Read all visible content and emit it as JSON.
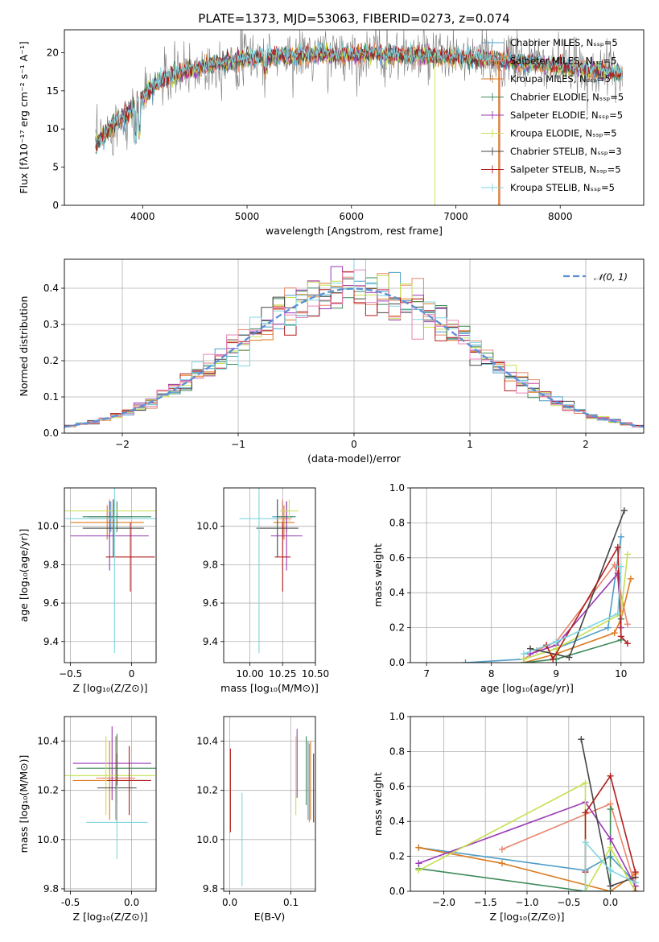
{
  "figure": {
    "title": "PLATE=1373, MJD=53063, FIBERID=0273, z=0.074"
  },
  "colors": {
    "Chabrier MILES": "#4f9ec6",
    "Salpeter MILES": "#e8866b",
    "Kroupa MILES": "#dd7a1f",
    "Chabrier ELODIE": "#3f8a5c",
    "Salpeter ELODIE": "#9b38b5",
    "Kroupa ELODIE": "#c6e152",
    "Chabrier STELIB": "#444444",
    "Salpeter STELIB": "#b21d1d",
    "Kroupa STELIB": "#7fd6e0",
    "observed": "#7a7a7a",
    "normal_curve": "#5a8fd6",
    "pink": "#e884b6"
  },
  "chart_data": [
    {
      "id": "spectrum",
      "type": "line",
      "title": "PLATE=1373, MJD=53063, FIBERID=0273, z=0.074",
      "xlabel": "wavelength [Angstrom, rest frame]",
      "ylabel": "Flux [fλ10⁻¹⁷ erg cm⁻² s⁻¹ A⁻¹]",
      "xlim": [
        3250,
        8800
      ],
      "ylim": [
        0,
        23
      ],
      "xticks": [
        4000,
        5000,
        6000,
        7000,
        8000
      ],
      "yticks": [
        0,
        5,
        10,
        15,
        20
      ],
      "grid": false,
      "legend_position": "top-right",
      "legend": [
        "Chabrier MILES, N_SSP=5",
        "Salpeter MILES, N_SSP=5",
        "Kroupa MILES, N_SSP=5",
        "Chabrier ELODIE, N_SSP=5",
        "Salpeter ELODIE, N_SSP=5",
        "Kroupa ELODIE, N_SSP=5",
        "Chabrier STELIB, N_SSP=3",
        "Salpeter STELIB, N_SSP=5",
        "Kroupa STELIB, N_SSP=5"
      ],
      "continuum": {
        "x": [
          3550,
          3650,
          3800,
          3900,
          4000,
          4100,
          4200,
          4400,
          4600,
          4800,
          5000,
          5200,
          5400,
          5600,
          5800,
          6000,
          6200,
          6400,
          6600,
          6800,
          7000,
          7200,
          7400,
          7600,
          7800,
          8000,
          8200,
          8400,
          8600
        ],
        "y": [
          8.0,
          9.5,
          11.5,
          12.5,
          14.0,
          15.5,
          16.5,
          17.5,
          18.3,
          18.8,
          19.3,
          19.5,
          19.6,
          19.7,
          19.8,
          19.8,
          19.8,
          19.7,
          19.6,
          19.5,
          19.4,
          19.2,
          19.0,
          18.8,
          18.5,
          18.2,
          17.9,
          17.6,
          17.3
        ]
      }
    },
    {
      "id": "residuals",
      "type": "line",
      "xlabel": "(data-model)/error",
      "ylabel": "Normed distribution",
      "xlim": [
        -2.5,
        2.5
      ],
      "ylim": [
        0,
        0.48
      ],
      "xticks": [
        -2,
        -1,
        0,
        1,
        2
      ],
      "yticks": [
        0.0,
        0.1,
        0.2,
        0.3,
        0.4
      ],
      "grid": true,
      "legend_position": "top-right",
      "legend": [
        "𝒩(0, 1)"
      ],
      "bin_width": 0.1,
      "curve": {
        "mean": 0,
        "sigma": 1
      }
    },
    {
      "id": "age-vs-Z",
      "type": "scatter",
      "xlabel": "Z [log₁₀(Z/Z⊙)]",
      "ylabel": "age  [log₁₀(age/yr)]",
      "xlim": [
        -0.55,
        0.2
      ],
      "ylim": [
        9.29,
        10.2
      ],
      "xticks": [
        -0.5,
        0.0
      ],
      "yticks": [
        9.4,
        9.6,
        9.8,
        10.0
      ],
      "grid": true,
      "points": [
        {
          "s": "Chabrier MILES",
          "x": -0.17,
          "xerr": 0.18,
          "y": 10.05,
          "yerr": 0.08
        },
        {
          "s": "Salpeter MILES",
          "x": -0.18,
          "xerr": 0.17,
          "y": 10.04,
          "yerr": 0.1
        },
        {
          "s": "Kroupa MILES",
          "x": -0.2,
          "xerr": 0.3,
          "y": 10.02,
          "yerr": 0.09
        },
        {
          "s": "Chabrier ELODIE",
          "x": -0.12,
          "xerr": 0.28,
          "y": 10.05,
          "yerr": 0.08
        },
        {
          "s": "Salpeter ELODIE",
          "x": -0.18,
          "xerr": 0.32,
          "y": 9.95,
          "yerr": 0.18
        },
        {
          "s": "Kroupa ELODIE",
          "x": -0.15,
          "xerr": 0.45,
          "y": 10.08,
          "yerr": 0.06
        },
        {
          "s": "Chabrier STELIB",
          "x": -0.15,
          "xerr": 0.25,
          "y": 9.99,
          "yerr": 0.15
        },
        {
          "s": "Salpeter STELIB",
          "x": -0.01,
          "xerr": 0.2,
          "y": 9.84,
          "yerr": 0.18
        },
        {
          "s": "Kroupa STELIB",
          "x": -0.14,
          "xerr": 0.4,
          "y": 10.04,
          "yerr": 0.7
        }
      ]
    },
    {
      "id": "age-vs-mass",
      "type": "scatter",
      "xlabel": "mass [log₁₀(M/M⊙)]",
      "ylabel": "",
      "xlim": [
        9.8,
        10.5
      ],
      "ylim": [
        9.29,
        10.2
      ],
      "xticks": [
        10.0,
        10.25,
        10.5
      ],
      "yticks": [
        9.4,
        9.6,
        9.8,
        10.0
      ],
      "grid": true,
      "points": [
        {
          "s": "Chabrier MILES",
          "x": 10.25,
          "xerr": 0.08,
          "y": 10.05,
          "yerr": 0.08
        },
        {
          "s": "Salpeter MILES",
          "x": 10.25,
          "xerr": 0.07,
          "y": 10.04,
          "yerr": 0.1
        },
        {
          "s": "Kroupa MILES",
          "x": 10.26,
          "xerr": 0.08,
          "y": 10.02,
          "yerr": 0.09
        },
        {
          "s": "Chabrier ELODIE",
          "x": 10.28,
          "xerr": 0.07,
          "y": 10.05,
          "yerr": 0.08
        },
        {
          "s": "Salpeter ELODIE",
          "x": 10.28,
          "xerr": 0.12,
          "y": 9.95,
          "yerr": 0.18
        },
        {
          "s": "Kroupa ELODIE",
          "x": 10.3,
          "xerr": 0.07,
          "y": 10.08,
          "yerr": 0.06
        },
        {
          "s": "Chabrier STELIB",
          "x": 10.21,
          "xerr": 0.16,
          "y": 9.99,
          "yerr": 0.15
        },
        {
          "s": "Salpeter STELIB",
          "x": 10.25,
          "xerr": 0.06,
          "y": 9.84,
          "yerr": 0.18
        },
        {
          "s": "Kroupa STELIB",
          "x": 10.07,
          "xerr": 0.15,
          "y": 10.04,
          "yerr": 0.7
        }
      ]
    },
    {
      "id": "massweight-vs-age",
      "type": "line",
      "xlabel": "age  [log₁₀(age/yr)]",
      "ylabel": "mass weight",
      "xlim": [
        6.75,
        10.35
      ],
      "ylim": [
        0,
        1.0
      ],
      "xticks": [
        7,
        8,
        9,
        10
      ],
      "yticks": [
        0.0,
        0.2,
        0.4,
        0.6,
        0.8,
        1.0
      ],
      "grid": true,
      "series": [
        {
          "name": "Chabrier MILES",
          "x": [
            7.6,
            8.5,
            9.0,
            9.8,
            10.0
          ],
          "y": [
            0.0,
            0.02,
            0.08,
            0.2,
            0.72
          ]
        },
        {
          "name": "Salpeter MILES",
          "x": [
            8.5,
            8.7,
            9.0,
            9.9,
            10.1
          ],
          "y": [
            0.02,
            0.07,
            0.12,
            0.56,
            0.22
          ]
        },
        {
          "name": "Kroupa MILES",
          "x": [
            8.5,
            9.0,
            9.9,
            10.0,
            10.15
          ],
          "y": [
            0.0,
            0.05,
            0.17,
            0.25,
            0.48
          ]
        },
        {
          "name": "Chabrier ELODIE",
          "x": [
            8.5,
            9.0,
            10.0,
            10.0
          ],
          "y": [
            0.0,
            0.02,
            0.13,
            0.25
          ]
        },
        {
          "name": "Salpeter ELODIE",
          "x": [
            8.6,
            9.0,
            9.95,
            10.0
          ],
          "y": [
            0.05,
            0.1,
            0.51,
            0.2
          ]
        },
        {
          "name": "Kroupa ELODIE",
          "x": [
            8.5,
            9.0,
            10.0,
            10.1
          ],
          "y": [
            0.02,
            0.08,
            0.28,
            0.62
          ]
        },
        {
          "name": "Chabrier STELIB",
          "x": [
            8.6,
            9.2,
            10.05
          ],
          "y": [
            0.08,
            0.03,
            0.87
          ]
        },
        {
          "name": "Salpeter STELIB",
          "x": [
            8.85,
            8.95,
            9.95,
            10.0,
            10.1
          ],
          "y": [
            0.1,
            0.02,
            0.66,
            0.15,
            0.11
          ]
        },
        {
          "name": "Kroupa STELIB",
          "x": [
            8.5,
            9.0,
            9.95,
            10.0
          ],
          "y": [
            0.05,
            0.12,
            0.28,
            0.55
          ]
        }
      ]
    },
    {
      "id": "mass-vs-Z",
      "type": "scatter",
      "xlabel": "Z [log₁₀(Z/Z⊙)]",
      "ylabel": "mass [log₁₀(M/M⊙)]",
      "xlim": [
        -0.55,
        0.2
      ],
      "ylim": [
        9.79,
        10.5
      ],
      "xticks": [
        -0.5,
        0.0
      ],
      "yticks": [
        9.8,
        10.0,
        10.2,
        10.4
      ],
      "grid": true,
      "points": [
        {
          "s": "Chabrier MILES",
          "x": -0.12,
          "xerr": 0.12,
          "y": 10.25,
          "yerr": 0.17
        },
        {
          "s": "Salpeter MILES",
          "x": -0.13,
          "xerr": 0.16,
          "y": 10.25,
          "yerr": 0.17
        },
        {
          "s": "Kroupa MILES",
          "x": -0.18,
          "xerr": 0.3,
          "y": 10.24,
          "yerr": 0.16
        },
        {
          "s": "Chabrier ELODIE",
          "x": -0.12,
          "xerr": 0.33,
          "y": 10.29,
          "yerr": 0.14
        },
        {
          "s": "Salpeter ELODIE",
          "x": -0.16,
          "xerr": 0.32,
          "y": 10.31,
          "yerr": 0.15
        },
        {
          "s": "Kroupa ELODIE",
          "x": -0.21,
          "xerr": 0.4,
          "y": 10.26,
          "yerr": 0.16
        },
        {
          "s": "Chabrier STELIB",
          "x": -0.12,
          "xerr": 0.16,
          "y": 10.21,
          "yerr": 0.14
        },
        {
          "s": "Salpeter STELIB",
          "x": -0.02,
          "xerr": 0.18,
          "y": 10.24,
          "yerr": 0.14
        },
        {
          "s": "Kroupa STELIB",
          "x": -0.12,
          "xerr": 0.25,
          "y": 10.07,
          "yerr": 0.15
        }
      ]
    },
    {
      "id": "mass-vs-ebv",
      "type": "scatter",
      "xlabel": "E(B-V)",
      "ylabel": "",
      "xlim": [
        -0.01,
        0.14
      ],
      "ylim": [
        9.79,
        10.5
      ],
      "xticks": [
        0.0,
        0.1
      ],
      "yticks": [
        9.8,
        10.0,
        10.2,
        10.4
      ],
      "grid": true,
      "points": [
        {
          "s": "Chabrier MILES",
          "x": 0.128,
          "xerr": 0,
          "y": 10.24,
          "yerr": 0.16
        },
        {
          "s": "Salpeter MILES",
          "x": 0.13,
          "xerr": 0,
          "y": 10.23,
          "yerr": 0.16
        },
        {
          "s": "Kroupa MILES",
          "x": 0.132,
          "xerr": 0,
          "y": 10.24,
          "yerr": 0.16
        },
        {
          "s": "Chabrier ELODIE",
          "x": 0.125,
          "xerr": 0,
          "y": 10.28,
          "yerr": 0.14
        },
        {
          "s": "Salpeter ELODIE",
          "x": 0.11,
          "xerr": 0,
          "y": 10.31,
          "yerr": 0.14
        },
        {
          "s": "Kroupa ELODIE",
          "x": 0.108,
          "xerr": 0,
          "y": 10.26,
          "yerr": 0.16
        },
        {
          "s": "Chabrier STELIB",
          "x": 0.137,
          "xerr": 0,
          "y": 10.21,
          "yerr": 0.14
        },
        {
          "s": "Salpeter STELIB",
          "x": 0.001,
          "xerr": 0,
          "y": 10.2,
          "yerr": 0.17
        },
        {
          "s": "Kroupa STELIB",
          "x": 0.02,
          "xerr": 0,
          "y": 10.0,
          "yerr": 0.19
        }
      ]
    },
    {
      "id": "massweight-vs-Z",
      "type": "line",
      "xlabel": "Z [log₁₀(Z/Z⊙)]",
      "ylabel": "mass weight",
      "xlim": [
        -2.4,
        0.4
      ],
      "ylim": [
        0,
        1.0
      ],
      "xticks": [
        -2.0,
        -1.5,
        -1.0,
        -0.5,
        0.0
      ],
      "yticks": [
        0.0,
        0.2,
        0.4,
        0.6,
        0.8,
        1.0
      ],
      "grid": true,
      "series": [
        {
          "name": "Chabrier MILES",
          "x": [
            -2.3,
            -0.3,
            0.0,
            0.3
          ],
          "y": [
            0.25,
            0.12,
            0.2,
            0.05
          ]
        },
        {
          "name": "Salpeter MILES",
          "x": [
            -1.3,
            0.0,
            0.3
          ],
          "y": [
            0.24,
            0.5,
            0.03
          ]
        },
        {
          "name": "Kroupa MILES",
          "x": [
            -2.3,
            -1.3,
            0.0,
            0.3
          ],
          "y": [
            0.25,
            0.16,
            0.0,
            0.1
          ]
        },
        {
          "name": "Chabrier ELODIE",
          "x": [
            -2.3,
            -0.3,
            0.0,
            0.0
          ],
          "y": [
            0.13,
            0.0,
            0.0,
            0.47
          ]
        },
        {
          "name": "Salpeter ELODIE",
          "x": [
            -2.3,
            -0.3,
            0.0,
            0.3
          ],
          "y": [
            0.16,
            0.51,
            0.3,
            0.03
          ]
        },
        {
          "name": "Kroupa ELODIE",
          "x": [
            -2.3,
            -0.3,
            -0.3,
            0.0,
            0.3
          ],
          "y": [
            0.12,
            0.62,
            0.0,
            0.25,
            0.0
          ]
        },
        {
          "name": "Chabrier STELIB",
          "x": [
            -0.35,
            0.0,
            0.3
          ],
          "y": [
            0.87,
            0.03,
            0.08
          ]
        },
        {
          "name": "Salpeter STELIB",
          "x": [
            -0.3,
            -0.3,
            0.0,
            0.3,
            0.3
          ],
          "y": [
            0.11,
            0.45,
            0.66,
            0.11,
            0.0
          ]
        },
        {
          "name": "Kroupa STELIB",
          "x": [
            -0.3,
            -0.3,
            0.0,
            0.3
          ],
          "y": [
            0.0,
            0.28,
            0.12,
            0.05
          ]
        }
      ]
    }
  ]
}
